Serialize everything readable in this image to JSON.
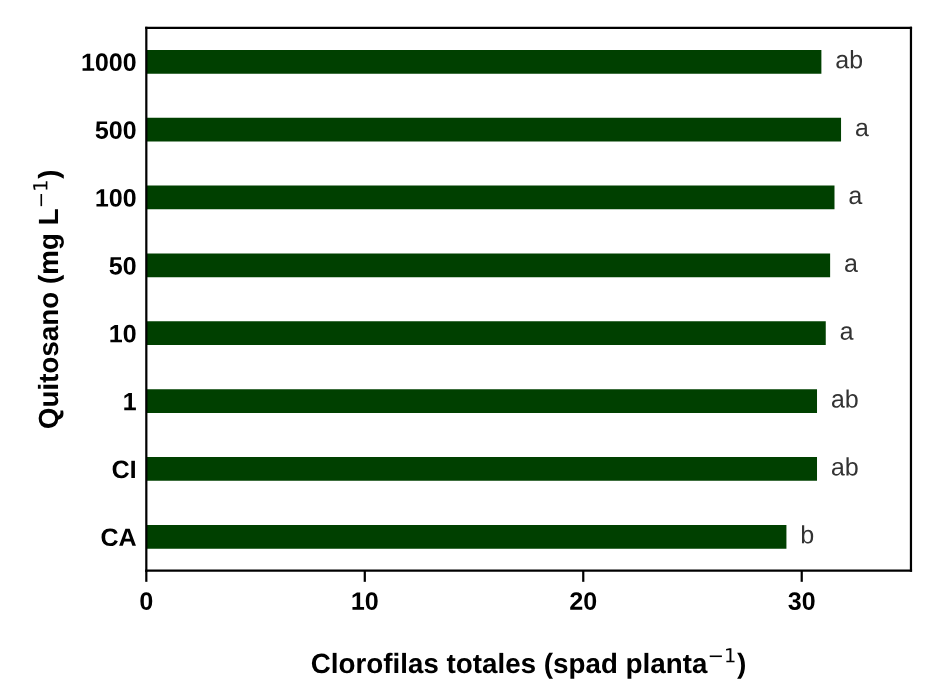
{
  "chart_data": {
    "type": "bar",
    "orientation": "horizontal",
    "xlabel": "Clorofilas totales (spad planta$^{−1}$)",
    "ylabel": "Quitosano (mg L$^{−1}$)",
    "categories": [
      "1000",
      "500",
      "100",
      "50",
      "10",
      "1",
      "CI",
      "CA"
    ],
    "values": [
      30.9,
      31.8,
      31.5,
      31.3,
      31.1,
      30.7,
      30.7,
      29.3
    ],
    "value_labels": [
      "ab",
      "a",
      "a",
      "a",
      "a",
      "ab",
      "ab",
      "b"
    ],
    "color": "#004000",
    "xlim": [
      0,
      35
    ],
    "xticks": [
      0,
      10,
      20,
      30
    ],
    "grid": false,
    "legend": false
  }
}
